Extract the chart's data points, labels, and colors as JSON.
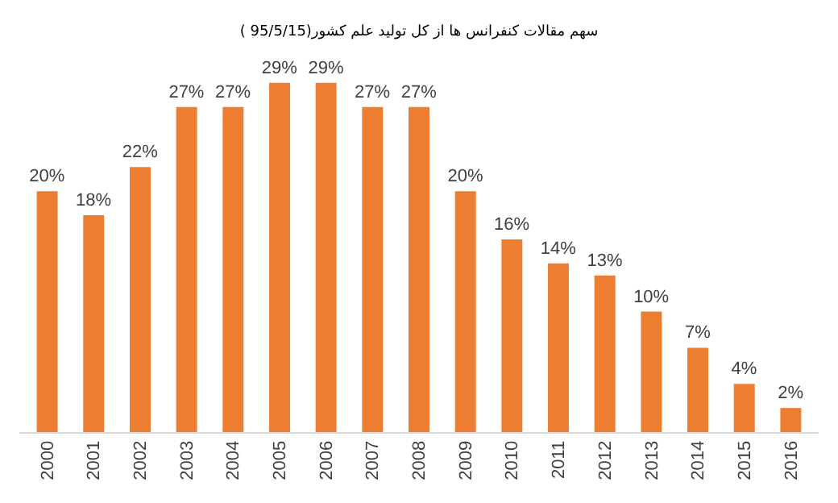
{
  "chart_data": {
    "type": "bar",
    "title": "سهم مقالات کنفرانس ها از کل تولید علم کشور(95/5/15 )",
    "categories": [
      "2000",
      "2001",
      "2002",
      "2003",
      "2004",
      "2005",
      "2006",
      "2007",
      "2008",
      "2009",
      "2010",
      "2011",
      "2012",
      "2013",
      "2014",
      "2015",
      "2016"
    ],
    "values": [
      20,
      18,
      22,
      27,
      27,
      29,
      29,
      27,
      27,
      20,
      16,
      14,
      13,
      10,
      7,
      4,
      2
    ],
    "value_labels": [
      "20%",
      "18%",
      "22%",
      "27%",
      "27%",
      "29%",
      "29%",
      "27%",
      "27%",
      "20%",
      "16%",
      "14%",
      "13%",
      "10%",
      "7%",
      "4%",
      "2%"
    ],
    "color": "#ed7d31",
    "tick_labels": "x",
    "grid": false,
    "legend": false
  }
}
